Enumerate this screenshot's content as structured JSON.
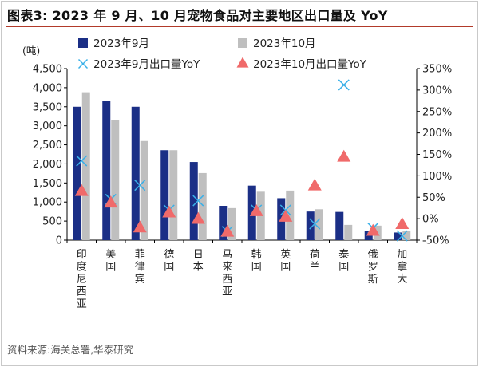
{
  "header": {
    "title": "图表3:  2023 年 9 月、10 月宠物食品对主要地区出口量及 YoY"
  },
  "footer": {
    "source": "资料来源:海关总署,华泰研究"
  },
  "colors": {
    "sep_bar": "#1b2f86",
    "oct_bar": "#bfbfbf",
    "sep_yoy": "#3ab0e8",
    "oct_yoy": "#f06a6a",
    "title_rule": "#b23a2a"
  },
  "chart_data": {
    "type": "bar",
    "title": "2023 年 9 月、10 月宠物食品对主要地区出口量及 YoY",
    "y_unit": "(吨)",
    "ylim_left": [
      0,
      4500
    ],
    "yticks_left": [
      "0",
      "500",
      "1,000",
      "1,500",
      "2,000",
      "2,500",
      "3,000",
      "3,500",
      "4,000",
      "4,500"
    ],
    "ylim_right": [
      -50,
      350
    ],
    "yticks_right": [
      "-50%",
      "0%",
      "50%",
      "100%",
      "150%",
      "200%",
      "250%",
      "300%",
      "350%"
    ],
    "legend_position": "top",
    "categories": [
      "印度尼西亚",
      "美国",
      "菲律宾",
      "德国",
      "日本",
      "马来西亚",
      "韩国",
      "英国",
      "荷兰",
      "泰国",
      "俄罗斯",
      "加拿大"
    ],
    "series": [
      {
        "name": "2023年9月",
        "kind": "bar",
        "axis": "left",
        "values": [
          3500,
          3660,
          3500,
          2360,
          2050,
          900,
          1430,
          1100,
          750,
          740,
          250,
          200
        ]
      },
      {
        "name": "2023年10月",
        "kind": "bar",
        "axis": "left",
        "values": [
          3880,
          3150,
          2600,
          2360,
          1760,
          840,
          1270,
          1300,
          810,
          400,
          380,
          230
        ]
      },
      {
        "name": "2023年9月出口量YoY",
        "kind": "marker-x",
        "axis": "right",
        "values": [
          135,
          45,
          78,
          20,
          42,
          -30,
          20,
          20,
          -12,
          312,
          -22,
          -40
        ]
      },
      {
        "name": "2023年10月出口量YoY",
        "kind": "marker-triangle",
        "axis": "right",
        "values": [
          65,
          38,
          -20,
          15,
          0,
          -30,
          18,
          5,
          78,
          145,
          -28,
          -12
        ]
      }
    ]
  }
}
